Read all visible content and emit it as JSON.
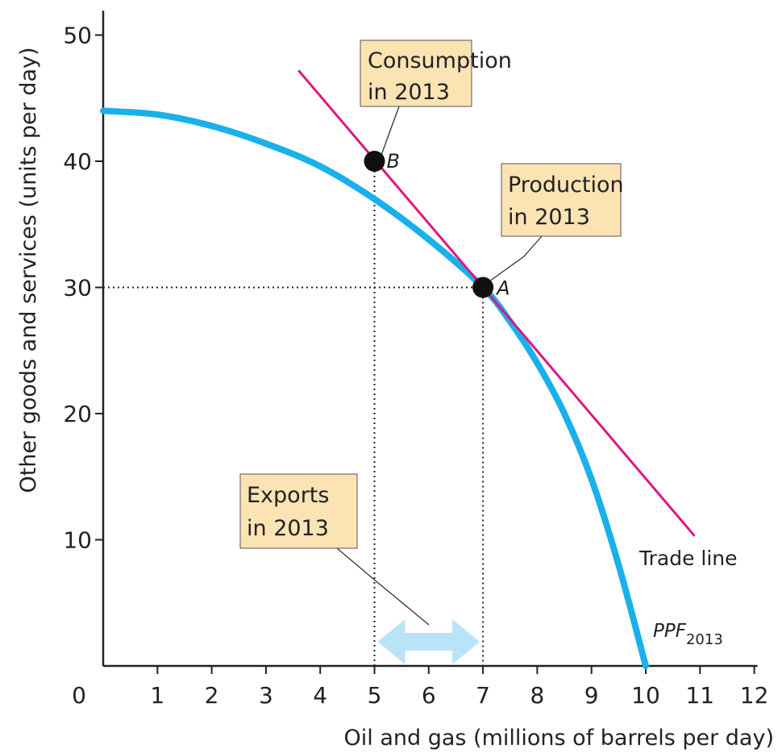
{
  "chart_data": {
    "type": "line",
    "xlabel": "Oil and gas (millions of barrels per day)",
    "ylabel": "Other goods and services (units per day)",
    "xlim": [
      0,
      12
    ],
    "ylim": [
      0,
      52
    ],
    "x_ticks": [
      0,
      1,
      2,
      3,
      4,
      5,
      6,
      7,
      8,
      9,
      10,
      11,
      12
    ],
    "y_ticks": [
      10,
      20,
      30,
      40,
      50
    ],
    "grid": false,
    "series": [
      {
        "name": "PPF",
        "label_main": "PPF",
        "label_sub": "2013",
        "color": "#1ab0ea",
        "x": [
          0,
          1,
          2,
          3,
          4,
          5,
          6,
          7,
          7.5,
          8,
          8.5,
          9,
          9.5,
          10
        ],
        "y": [
          44,
          43.7,
          42.8,
          41.4,
          39.6,
          37,
          33.8,
          30,
          27.3,
          24,
          20,
          14.8,
          8,
          0
        ]
      },
      {
        "name": "Trade line",
        "color": "#e0177f",
        "x": [
          3.6,
          10.9
        ],
        "y": [
          47.2,
          10.3
        ]
      }
    ],
    "points": [
      {
        "name": "A",
        "x": 7,
        "y": 30
      },
      {
        "name": "B",
        "x": 5,
        "y": 40
      }
    ],
    "annotations": [
      {
        "id": "consumption",
        "line1": "Consumption",
        "line2": "in 2013"
      },
      {
        "id": "production",
        "line1": "Production",
        "line2": "in 2013"
      },
      {
        "id": "exports",
        "line1": "Exports",
        "line2": "in 2013"
      }
    ],
    "exports_arrow": {
      "from": 5,
      "to": 7,
      "color": "#b9e4f7"
    },
    "note_box_color": "#fbe3b4"
  }
}
